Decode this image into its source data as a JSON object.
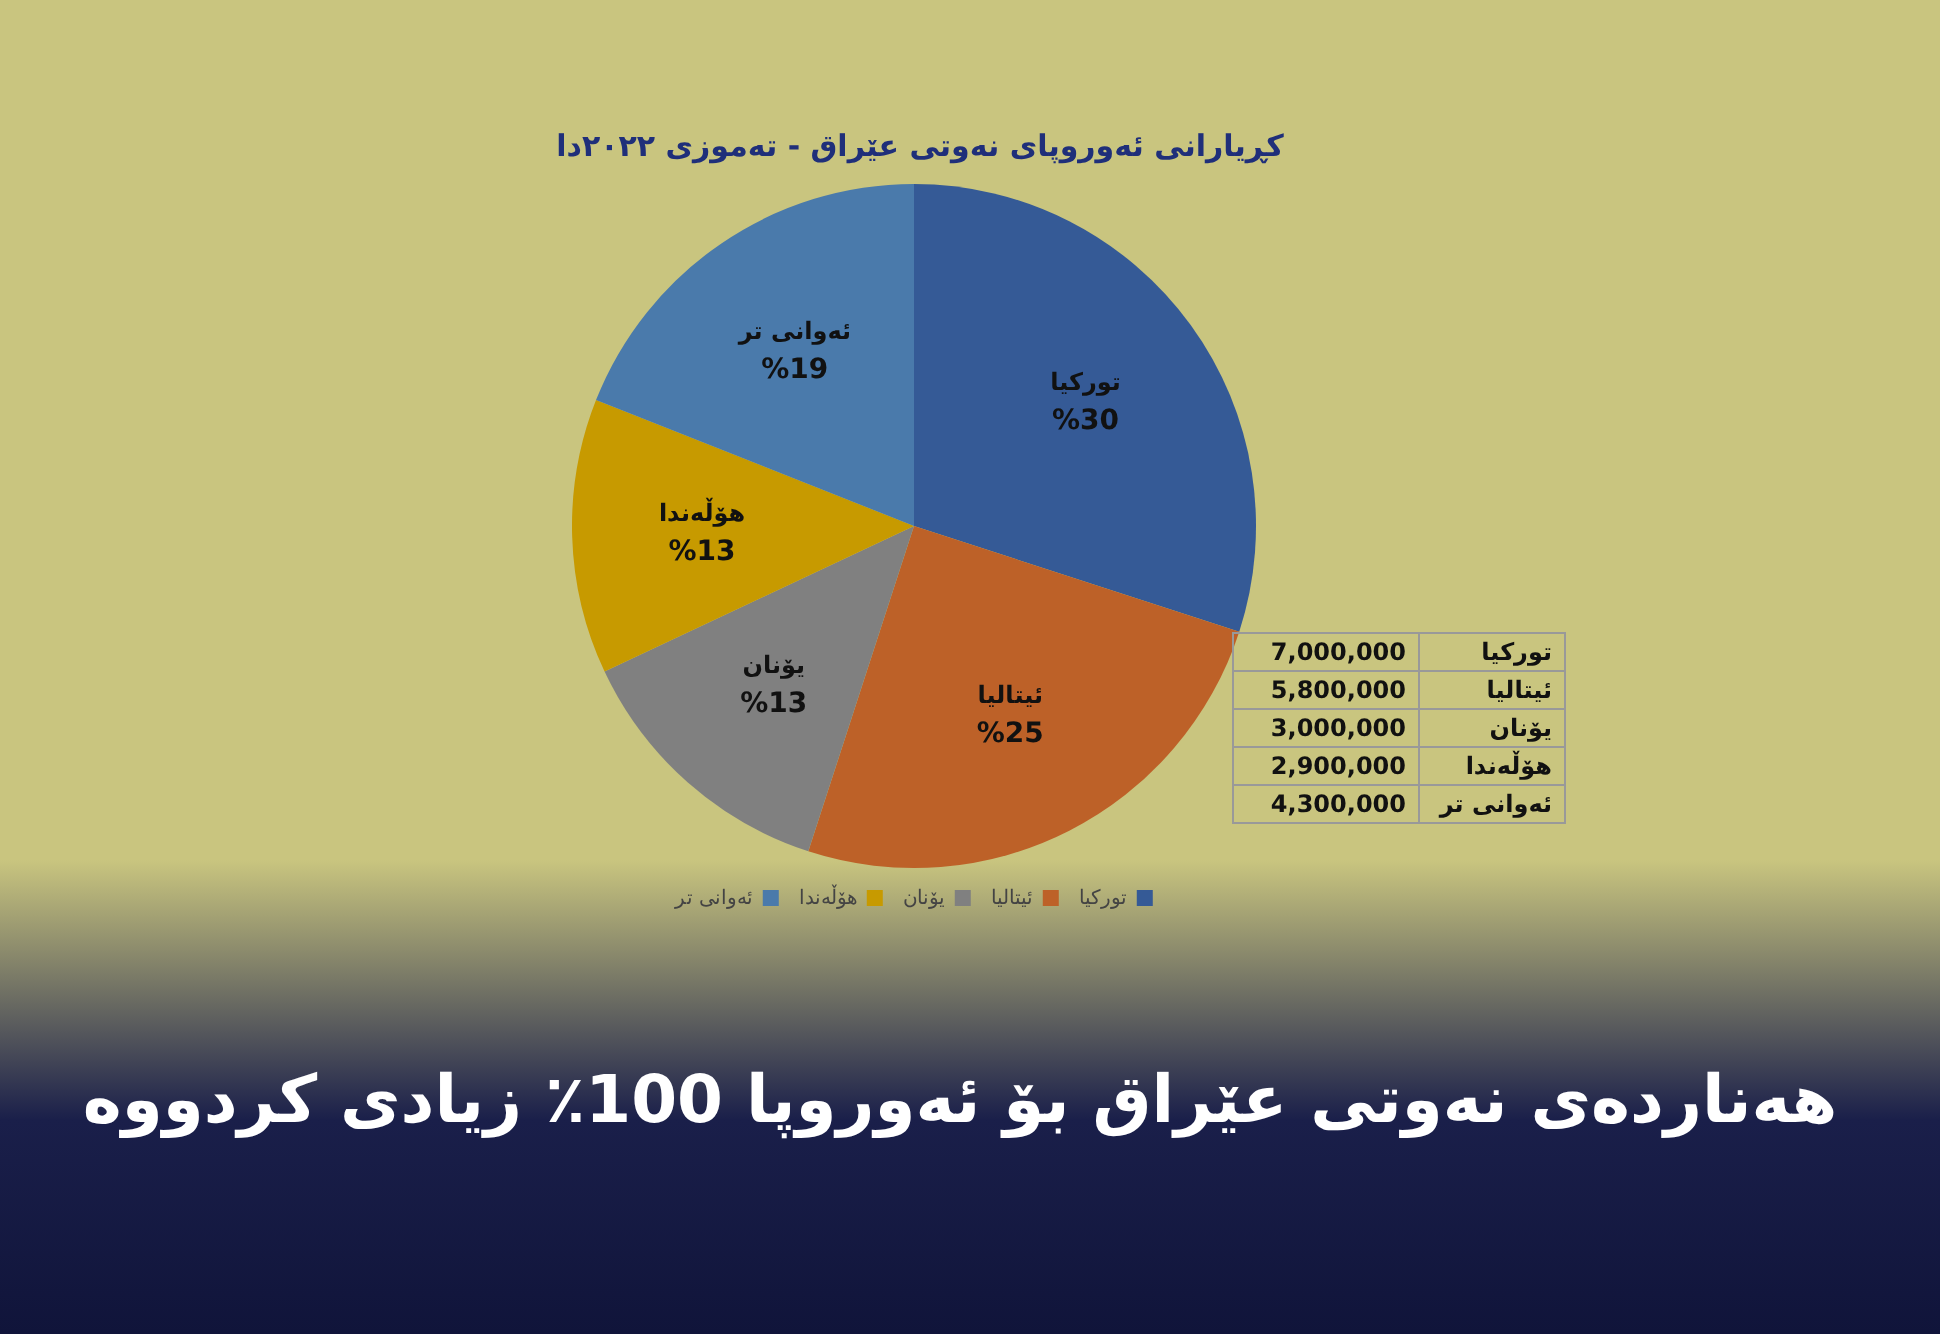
{
  "chart_data": {
    "type": "pie",
    "title": "کڕیارانی ئەوروپای نەوتی عێراق - تەموزی ٢٠٢٢دا",
    "subtitle": "هەناردەی نەوتی عێراق بۆ ئەوروپا 100٪ زیادی کردووە",
    "categories": [
      "تورکیا",
      "ئیتالیا",
      "یۆنان",
      "هۆڵەندا",
      "ئەوانی تر"
    ],
    "values": [
      30,
      25,
      13,
      13,
      19
    ],
    "colors": [
      "#355a96",
      "#bd6128",
      "#808080",
      "#c79a00",
      "#4a7aab"
    ],
    "value_labels": [
      "%30",
      "%25",
      "%13",
      "%13",
      "%19"
    ],
    "annotations": [
      "7,000,000",
      "5,800,000",
      "3,000,000",
      "2,900,000",
      "4,300,000"
    ],
    "legend": "bottom"
  }
}
